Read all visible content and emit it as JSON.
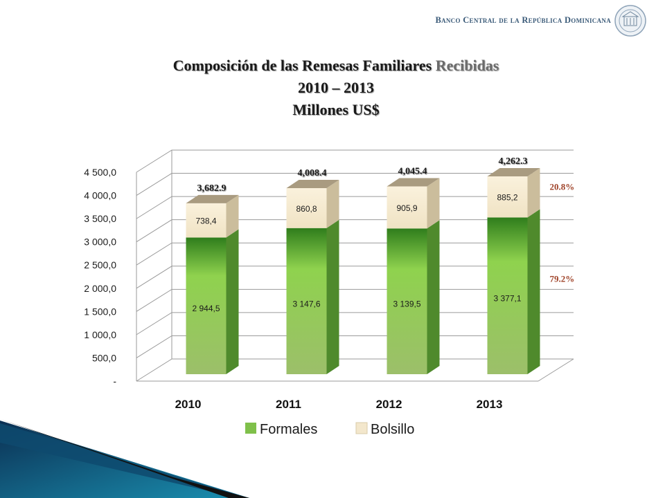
{
  "header": {
    "organization": "Banco Central de la República Dominicana",
    "seal_icon": "central-bank-seal-icon"
  },
  "title": {
    "line1_main": "Composición de las Remesas Familiares",
    "line1_tail": "Recibidas",
    "line2": "2010 – 2013",
    "line3": "Millones US$"
  },
  "chart_data": {
    "type": "bar",
    "stacked": true,
    "style": "3d",
    "categories": [
      "2010",
      "2011",
      "2012",
      "2013"
    ],
    "series": [
      {
        "name": "Formales",
        "values": [
          2944.5,
          3147.6,
          3139.5,
          3377.1
        ],
        "labels": [
          "2 944,5",
          "3 147,6",
          "3 139,5",
          "3 377,1"
        ],
        "color": "#7fc04a"
      },
      {
        "name": "Bolsillo",
        "values": [
          738.4,
          860.8,
          905.9,
          885.2
        ],
        "labels": [
          "738,4",
          "860,8",
          "905,9",
          "885,2"
        ],
        "color": "#f3e7cc"
      }
    ],
    "totals": [
      3682.9,
      4008.4,
      4045.4,
      4262.3
    ],
    "total_labels": [
      "3,682.9",
      "4,008.4",
      "4,045.4",
      "4,262.3"
    ],
    "share_labels": {
      "Bolsillo": "20.8%",
      "Formales": "79.2%"
    },
    "ylim": [
      0,
      4500
    ],
    "yticks": [
      0,
      500,
      1000,
      1500,
      2000,
      2500,
      3000,
      3500,
      4000,
      4500
    ],
    "ytick_labels": [
      "-",
      "500,0",
      "1 000,0",
      "1 500,0",
      "2 000,0",
      "2 500,0",
      "3 000,0",
      "3 500,0",
      "4 000,0",
      "4 500,0"
    ],
    "grid": true,
    "legend_position": "bottom"
  }
}
